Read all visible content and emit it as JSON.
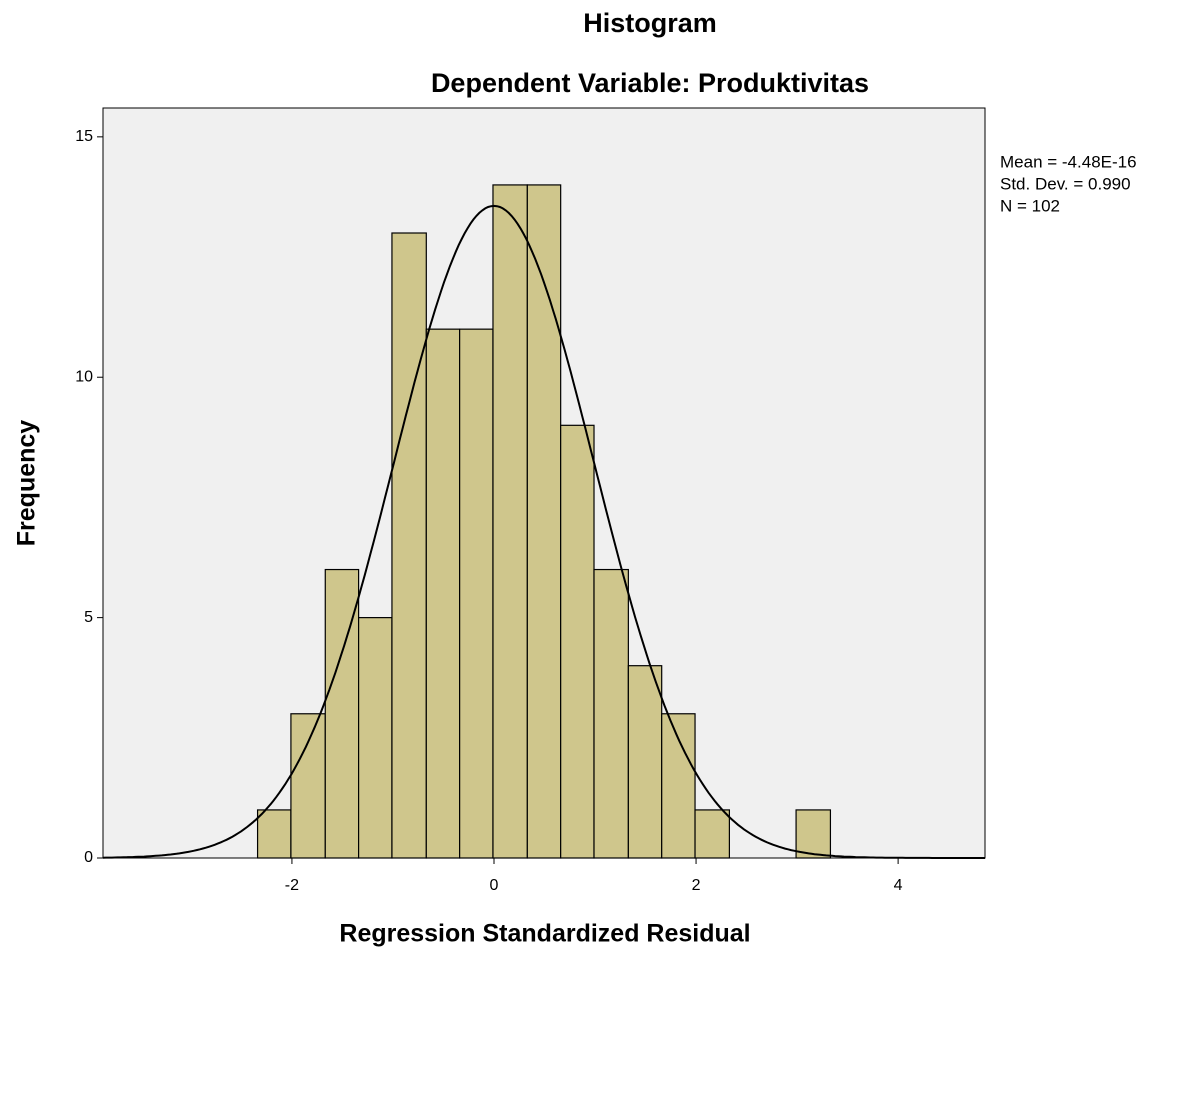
{
  "chart_data": {
    "type": "histogram",
    "title": "Histogram",
    "subtitle": "Dependent Variable: Produktivitas",
    "x_label": "Regression Standardized Residual",
    "y_label": "Frequency",
    "bins": [
      -2.34,
      -2.01,
      -1.67,
      -1.34,
      -1.01,
      -0.67,
      -0.34,
      -0.01,
      0.33,
      0.66,
      0.99,
      1.33,
      1.66,
      1.99,
      2.33,
      2.66,
      2.99,
      3.33
    ],
    "counts": [
      1,
      3,
      6,
      5,
      13,
      11,
      11,
      14,
      14,
      9,
      6,
      4,
      3,
      1,
      0,
      0,
      1
    ],
    "color": "#cfc68c",
    "xlim": [
      -3.87,
      4.86
    ],
    "ylim": [
      0,
      15.6
    ],
    "xticks": [
      -2,
      0,
      2,
      4
    ],
    "yticks": [
      0,
      5,
      10,
      15
    ],
    "normal_curve": {
      "mean": -4.48e-16,
      "std": 0.99,
      "n": 102
    },
    "stats": [
      "Mean = -4.48E-16",
      "Std. Dev. = 0.990",
      "N = 102"
    ]
  }
}
